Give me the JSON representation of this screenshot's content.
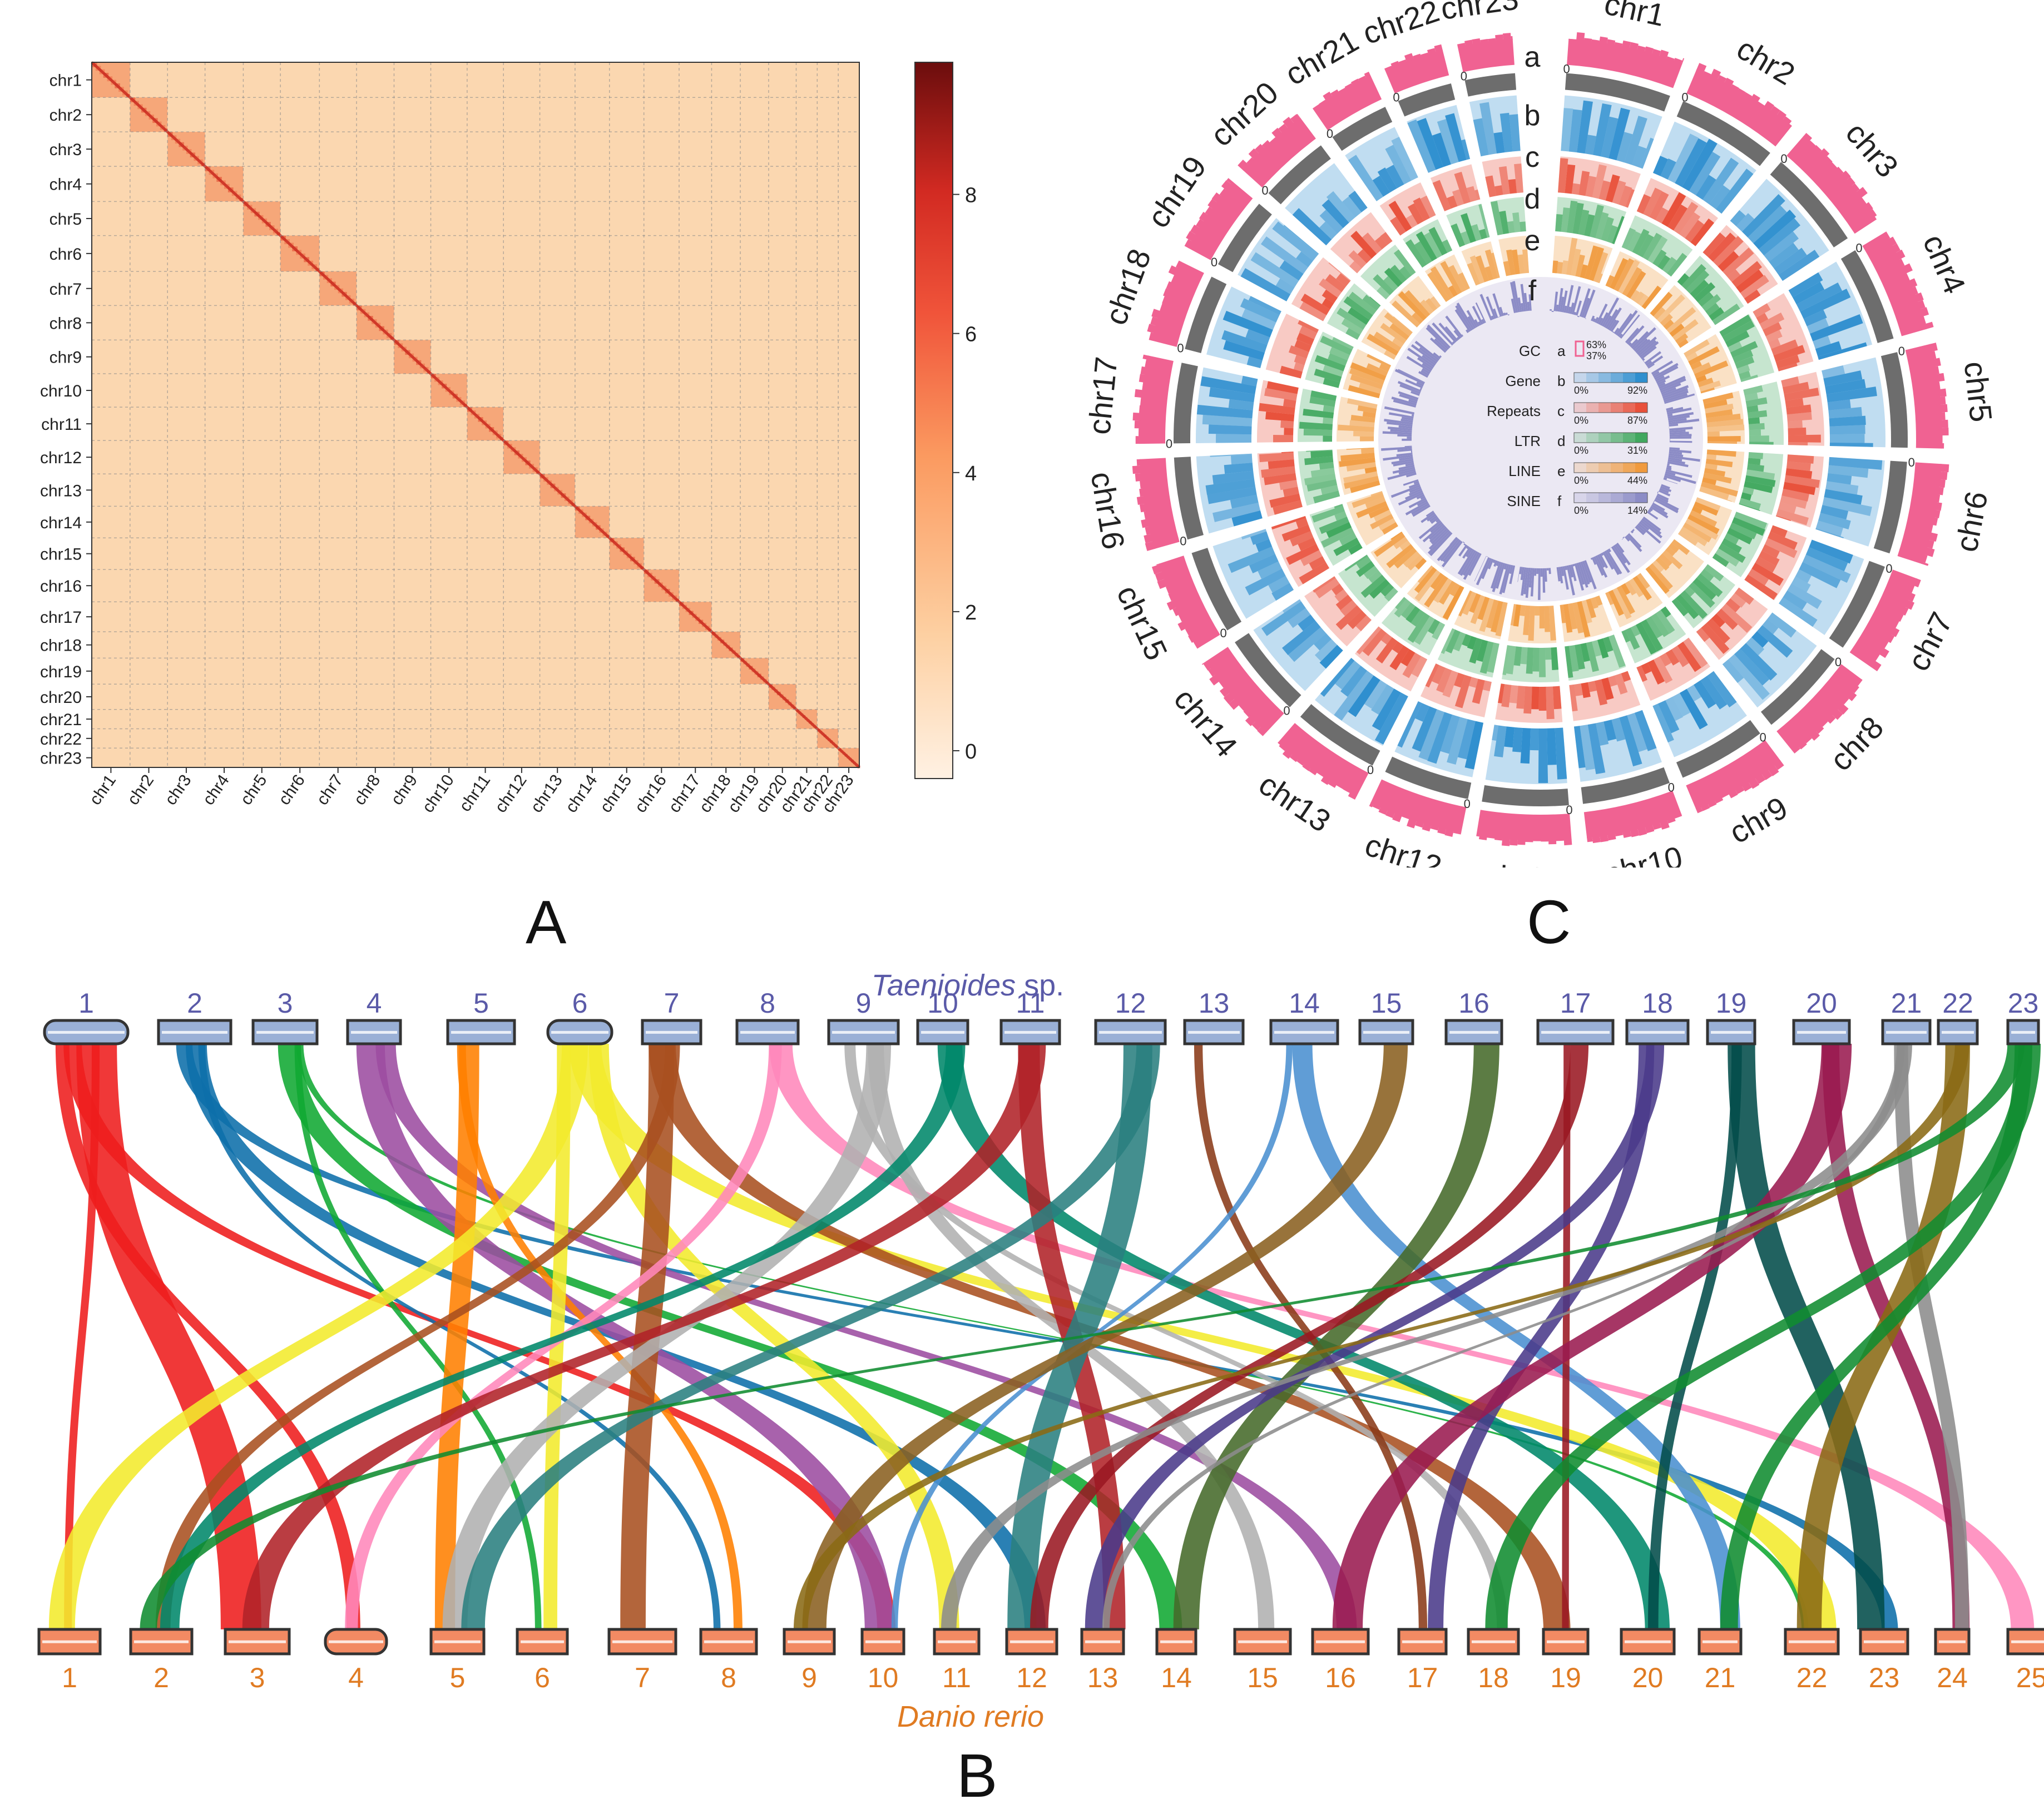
{
  "panels": {
    "a": {
      "letter": "A"
    },
    "b": {
      "letter": "B"
    },
    "c": {
      "letter": "C"
    }
  },
  "colors": {
    "heatmap_low": "#fdebd6",
    "heatmap_high": "#6b0d0d",
    "gc": "#f06292",
    "gene": "#2f8fcf",
    "repeats": "#e8503a",
    "ltr": "#41a85f",
    "line": "#f09a3e",
    "sine": "#8c8cc6",
    "top_chrom": "#9ab0d6",
    "bottom_chrom": "#f28a63",
    "top_label": "#5a5aa8",
    "bottom_label": "#e07b22"
  },
  "chart_data": [
    {
      "type": "heatmap",
      "title": "",
      "row_labels": [
        "chr1",
        "chr2",
        "chr3",
        "chr4",
        "chr5",
        "chr6",
        "chr7",
        "chr8",
        "chr9",
        "chr10",
        "chr11",
        "chr12",
        "chr13",
        "chr14",
        "chr15",
        "chr16",
        "chr17",
        "chr18",
        "chr19",
        "chr20",
        "chr21",
        "chr22",
        "chr23"
      ],
      "col_labels": [
        "chr1",
        "chr2",
        "chr3",
        "chr4",
        "chr5",
        "chr6",
        "chr7",
        "chr8",
        "chr9",
        "chr10",
        "chr11",
        "chr12",
        "chr13",
        "chr14",
        "chr15",
        "chr16",
        "chr17",
        "chr18",
        "chr19",
        "chr20",
        "chr21",
        "chr22",
        "chr23"
      ],
      "chrom_lengths": [
        1.0,
        0.98,
        0.98,
        1.0,
        0.97,
        1.02,
        0.97,
        0.98,
        0.96,
        0.95,
        0.95,
        0.95,
        0.92,
        0.9,
        0.9,
        0.92,
        0.85,
        0.75,
        0.74,
        0.72,
        0.55,
        0.55,
        0.55
      ],
      "colorbar_ticks": [
        0,
        2,
        4,
        6,
        8
      ],
      "colorbar_range": [
        -0.4,
        9.9
      ]
    },
    {
      "type": "circos",
      "chromosomes": [
        "chr1",
        "chr2",
        "chr3",
        "chr4",
        "chr5",
        "chr6",
        "chr7",
        "chr8",
        "chr9",
        "chr10",
        "chr11",
        "chr12",
        "chr13",
        "chr14",
        "chr15",
        "chr16",
        "chr17",
        "chr18",
        "chr19",
        "chr20",
        "chr21",
        "chr22",
        "chr23"
      ],
      "tracks": [
        {
          "id": "a",
          "name": "GC",
          "min": "37%",
          "max": "63%"
        },
        {
          "id": "b",
          "name": "Gene",
          "min": "0%",
          "max": "92%"
        },
        {
          "id": "c",
          "name": "Repeats",
          "min": "0%",
          "max": "87%"
        },
        {
          "id": "d",
          "name": "LTR",
          "min": "0%",
          "max": "31%"
        },
        {
          "id": "e",
          "name": "LINE",
          "min": "0%",
          "max": "44%"
        },
        {
          "id": "f",
          "name": "SINE",
          "min": "0%",
          "max": "14%"
        }
      ],
      "tick_label": "0"
    },
    {
      "type": "synteny",
      "top_species_genus": "Taenioides",
      "top_species_suffix": " sp.",
      "bottom_species": "Danio rerio",
      "top_chromosomes": [
        "1",
        "2",
        "3",
        "4",
        "5",
        "6",
        "7",
        "8",
        "9",
        "10",
        "11",
        "12",
        "13",
        "14",
        "15",
        "16",
        "17",
        "18",
        "19",
        "20",
        "21",
        "22",
        "23"
      ],
      "bottom_chromosomes": [
        "1",
        "2",
        "3",
        "4",
        "5",
        "6",
        "7",
        "8",
        "9",
        "10",
        "11",
        "12",
        "13",
        "14",
        "15",
        "16",
        "17",
        "18",
        "19",
        "20",
        "21",
        "22",
        "23",
        "24",
        "25"
      ],
      "link_colors": [
        "#ee1c1c",
        "#0c6eaa",
        "#10a832",
        "#9c4ca0",
        "#ff7f00",
        "#f2ea2c",
        "#a85020",
        "#ff88bb",
        "#b0b0b0",
        "#00876a",
        "#b02228",
        "#2a8080",
        "#8a3a18",
        "#4a8fd0",
        "#8a6020",
        "#466a2a",
        "#9a1822",
        "#4a3a8a",
        "#024c4a",
        "#9a1a50",
        "#8c8c8c",
        "#8a6a14",
        "#108c30"
      ],
      "links": [
        {
          "from": 1,
          "to": 3
        },
        {
          "from": 1,
          "to": 1
        },
        {
          "from": 1,
          "to": 4
        },
        {
          "from": 1,
          "to": 10
        },
        {
          "from": 2,
          "to": 12
        },
        {
          "from": 2,
          "to": 8
        },
        {
          "from": 2,
          "to": 23
        },
        {
          "from": 3,
          "to": 6
        },
        {
          "from": 3,
          "to": 14
        },
        {
          "from": 3,
          "to": 22
        },
        {
          "from": 4,
          "to": 16
        },
        {
          "from": 4,
          "to": 10
        },
        {
          "from": 5,
          "to": 5
        },
        {
          "from": 5,
          "to": 8
        },
        {
          "from": 6,
          "to": 1
        },
        {
          "from": 6,
          "to": 6
        },
        {
          "from": 6,
          "to": 11
        },
        {
          "from": 6,
          "to": 22
        },
        {
          "from": 7,
          "to": 7
        },
        {
          "from": 7,
          "to": 2
        },
        {
          "from": 7,
          "to": 19
        },
        {
          "from": 8,
          "to": 25
        },
        {
          "from": 8,
          "to": 4
        },
        {
          "from": 9,
          "to": 15
        },
        {
          "from": 9,
          "to": 18
        },
        {
          "from": 9,
          "to": 5
        },
        {
          "from": 10,
          "to": 20
        },
        {
          "from": 10,
          "to": 2
        },
        {
          "from": 11,
          "to": 3
        },
        {
          "from": 11,
          "to": 13
        },
        {
          "from": 12,
          "to": 12
        },
        {
          "from": 12,
          "to": 5
        },
        {
          "from": 13,
          "to": 17
        },
        {
          "from": 14,
          "to": 10
        },
        {
          "from": 14,
          "to": 21
        },
        {
          "from": 15,
          "to": 9
        },
        {
          "from": 16,
          "to": 14
        },
        {
          "from": 17,
          "to": 19
        },
        {
          "from": 17,
          "to": 12
        },
        {
          "from": 18,
          "to": 13
        },
        {
          "from": 18,
          "to": 17
        },
        {
          "from": 19,
          "to": 20
        },
        {
          "from": 19,
          "to": 23
        },
        {
          "from": 20,
          "to": 24
        },
        {
          "from": 20,
          "to": 16
        },
        {
          "from": 21,
          "to": 24
        },
        {
          "from": 21,
          "to": 13
        },
        {
          "from": 21,
          "to": 11
        },
        {
          "from": 22,
          "to": 9
        },
        {
          "from": 22,
          "to": 22
        },
        {
          "from": 23,
          "to": 21
        },
        {
          "from": 23,
          "to": 18
        },
        {
          "from": 23,
          "to": 2
        }
      ]
    }
  ]
}
